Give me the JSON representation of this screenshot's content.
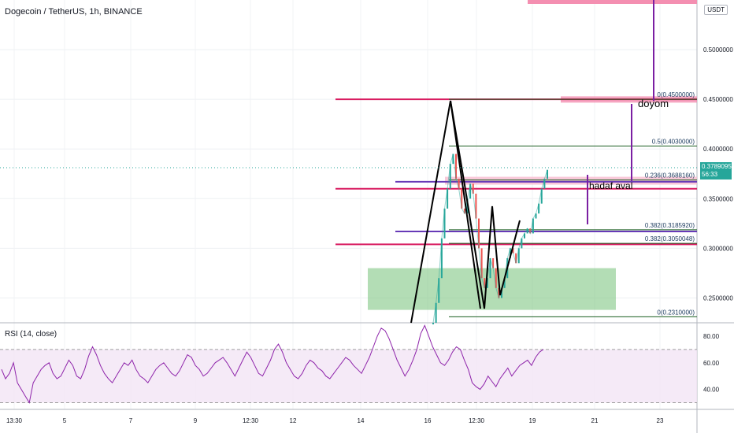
{
  "header": {
    "symbol_title": "Dogecoin / TetherUS, 1h, BINANCE",
    "currency_badge": "USDT",
    "rsi_title": "RSI (14, close)"
  },
  "current_price": {
    "value": "0.3789095",
    "countdown": "56:33",
    "color": "#26a69a"
  },
  "chart_data": [
    {
      "type": "line",
      "id": "price",
      "y_axis_ticks": [
        "0.2500000",
        "0.3000000",
        "0.3500000",
        "0.4000000",
        "0.4500000",
        "0.5000000"
      ],
      "ylim": [
        0.225,
        0.55
      ],
      "x_axis_ticks": [
        "13:30",
        "5",
        "7",
        "9",
        "12:30",
        "12",
        "14",
        "16",
        "12:30",
        "19",
        "21",
        "23"
      ],
      "fib_levels": [
        {
          "label": "0(0.4500000)",
          "value": 0.45
        },
        {
          "label": "0.5(0.4030000)",
          "value": 0.403
        },
        {
          "label": "0.236(0.3688160)",
          "value": 0.368816
        },
        {
          "label": "0.382(0.3185920)",
          "value": 0.318592
        },
        {
          "label": "0.382(0.3050048)",
          "value": 0.3050048
        },
        {
          "label": "0(0.2310000)",
          "value": 0.231
        }
      ],
      "annotations": [
        {
          "text": "doyom",
          "value": 0.448
        },
        {
          "text": "hadaf aval",
          "value": 0.357
        }
      ],
      "horizontal_levels": [
        {
          "value": 0.45,
          "color": "#d81b60"
        },
        {
          "value": 0.36,
          "color": "#d81b60"
        },
        {
          "value": 0.304,
          "color": "#d81b60"
        },
        {
          "value": 0.367,
          "color": "#673ab7"
        },
        {
          "value": 0.317,
          "color": "#673ab7"
        }
      ],
      "zones": [
        {
          "name": "demand",
          "from": 0.238,
          "to": 0.28,
          "color": "#81c784"
        }
      ],
      "pattern_points": [
        [
          0.18,
          0.45
        ],
        [
          0.2,
          0.36
        ],
        [
          0.22,
          0.233
        ],
        [
          0.235,
          0.279
        ],
        [
          0.25,
          0.237
        ],
        [
          0.27,
          0.29
        ]
      ],
      "price_series": [
        0.225,
        0.245,
        0.27,
        0.31,
        0.34,
        0.36,
        0.385,
        0.395,
        0.37,
        0.36,
        0.34,
        0.335,
        0.35,
        0.365,
        0.355,
        0.33,
        0.3,
        0.27,
        0.26,
        0.27,
        0.29,
        0.28,
        0.26,
        0.25,
        0.26,
        0.27,
        0.29,
        0.3,
        0.295,
        0.285,
        0.3,
        0.31,
        0.315,
        0.32,
        0.315,
        0.33,
        0.335,
        0.345,
        0.36,
        0.37,
        0.379
      ]
    },
    {
      "type": "line",
      "id": "rsi",
      "y_axis_ticks": [
        "40.00",
        "60.00",
        "80.00"
      ],
      "ylim": [
        25,
        90
      ],
      "bands": {
        "upper": 70,
        "lower": 30
      },
      "values": [
        55,
        48,
        52,
        60,
        45,
        40,
        35,
        30,
        45,
        50,
        55,
        58,
        60,
        52,
        48,
        50,
        56,
        62,
        58,
        50,
        48,
        55,
        65,
        72,
        66,
        58,
        52,
        48,
        45,
        50,
        55,
        60,
        58,
        62,
        55,
        50,
        48,
        45,
        50,
        55,
        58,
        60,
        56,
        52,
        50,
        54,
        60,
        66,
        64,
        58,
        55,
        50,
        52,
        56,
        60,
        62,
        64,
        60,
        55,
        50,
        56,
        62,
        68,
        64,
        58,
        52,
        50,
        56,
        62,
        70,
        74,
        68,
        60,
        55,
        50,
        48,
        52,
        58,
        62,
        60,
        56,
        54,
        50,
        48,
        52,
        56,
        60,
        64,
        62,
        58,
        55,
        52,
        58,
        64,
        72,
        80,
        86,
        84,
        78,
        70,
        62,
        56,
        50,
        55,
        62,
        70,
        82,
        88,
        80,
        72,
        66,
        60,
        58,
        62,
        68,
        72,
        70,
        62,
        55,
        45,
        42,
        40,
        44,
        50,
        46,
        42,
        48,
        52,
        56,
        50,
        54,
        58,
        60,
        62,
        58,
        64,
        68,
        70
      ]
    }
  ],
  "labels": {
    "fib_0_top": "0(0.4500000)",
    "fib_05": "0.5(0.4030000)",
    "fib_0236": "0.236(0.3688160)",
    "fib_0382a": "0.382(0.3185920)",
    "fib_0382b": "0.382(0.3050048)",
    "fib_0_bottom": "0(0.2310000)",
    "doyom": "doyom",
    "hadaf": "hadaf aval"
  }
}
